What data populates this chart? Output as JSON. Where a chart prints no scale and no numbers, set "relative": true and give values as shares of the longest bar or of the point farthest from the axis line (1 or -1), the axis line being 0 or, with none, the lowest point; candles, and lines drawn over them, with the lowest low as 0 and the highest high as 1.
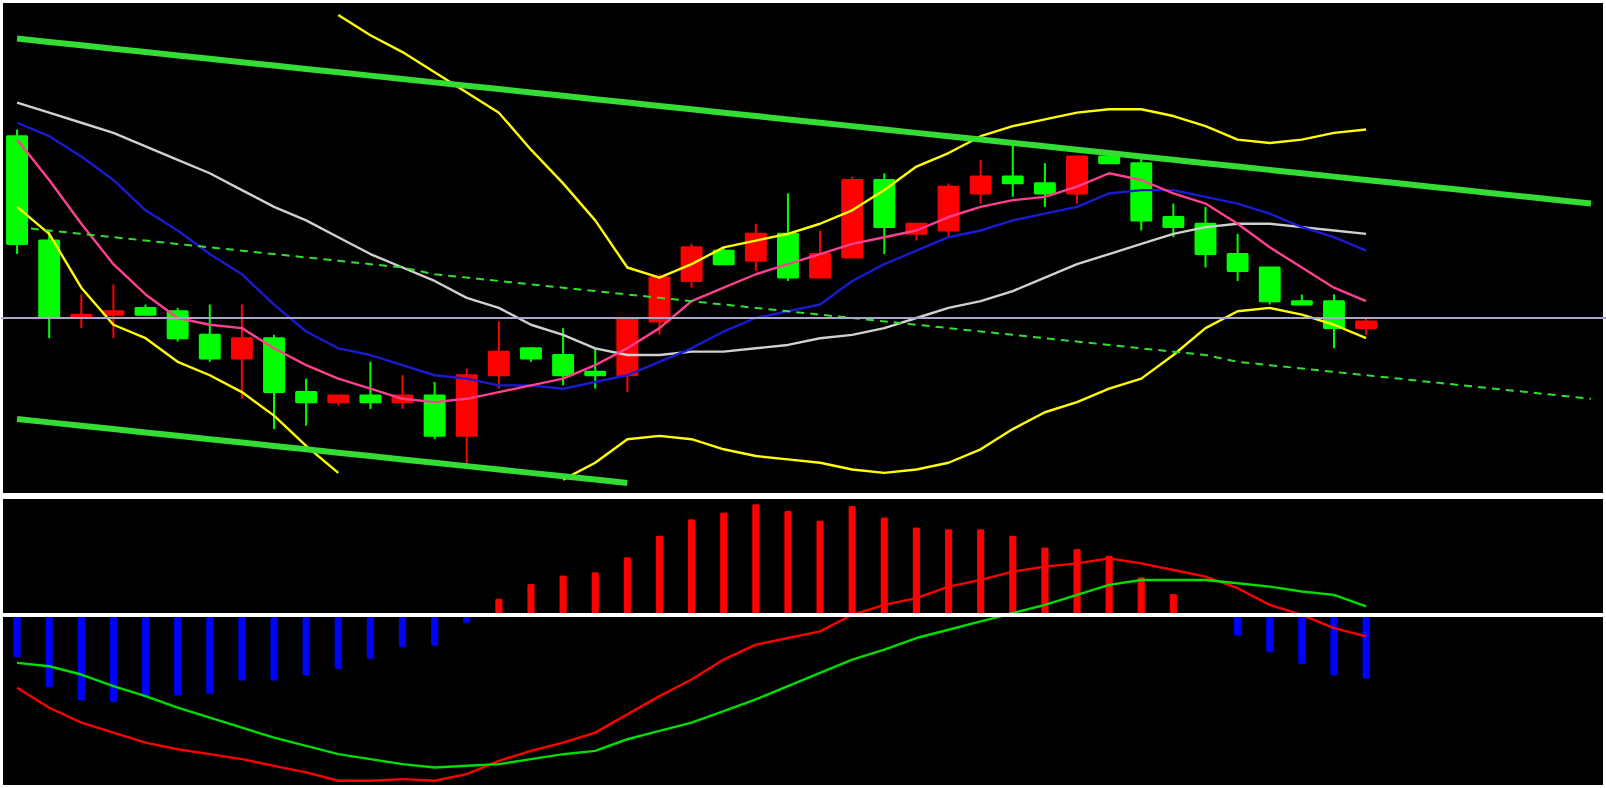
{
  "chart_data": [
    {
      "type": "candlestick",
      "relative": true,
      "grid": false,
      "tick_labels": false,
      "categories": [
        null,
        null,
        null,
        null,
        null,
        null,
        null,
        null,
        null,
        null,
        null,
        null,
        null,
        null,
        null,
        null,
        null,
        null,
        null,
        null,
        null,
        null,
        null,
        null,
        null,
        null,
        null,
        null,
        null,
        null,
        null,
        null,
        null,
        null,
        null,
        null,
        null,
        null,
        null,
        null,
        null,
        null,
        null,
        null,
        null,
        null,
        null,
        null,
        null,
        null
      ],
      "ohlc": [
        [
          0.98,
          1.0,
          0.63,
          0.66
        ],
        [
          0.67,
          0.7,
          0.38,
          0.44
        ],
        [
          0.44,
          0.51,
          0.41,
          0.45
        ],
        [
          0.45,
          0.54,
          0.38,
          0.46
        ],
        [
          0.47,
          0.48,
          0.45,
          0.45
        ],
        [
          0.46,
          0.47,
          0.37,
          0.38
        ],
        [
          0.39,
          0.48,
          0.31,
          0.32
        ],
        [
          0.32,
          0.48,
          0.2,
          0.38
        ],
        [
          0.38,
          0.39,
          0.11,
          0.22
        ],
        [
          0.22,
          0.26,
          0.12,
          0.19
        ],
        [
          0.19,
          0.21,
          0.18,
          0.21
        ],
        [
          0.21,
          0.31,
          0.17,
          0.19
        ],
        [
          0.19,
          0.27,
          0.17,
          0.21
        ],
        [
          0.21,
          0.25,
          0.08,
          0.09
        ],
        [
          0.09,
          0.29,
          0.0,
          0.27
        ],
        [
          0.27,
          0.43,
          0.23,
          0.34
        ],
        [
          0.35,
          0.35,
          0.31,
          0.32
        ],
        [
          0.33,
          0.41,
          0.24,
          0.27
        ],
        [
          0.28,
          0.35,
          0.23,
          0.27
        ],
        [
          0.27,
          0.44,
          0.22,
          0.44
        ],
        [
          0.43,
          0.57,
          0.39,
          0.56
        ],
        [
          0.55,
          0.66,
          0.53,
          0.65
        ],
        [
          0.64,
          0.65,
          0.6,
          0.6
        ],
        [
          0.61,
          0.72,
          0.58,
          0.69
        ],
        [
          0.69,
          0.81,
          0.55,
          0.56
        ],
        [
          0.56,
          0.7,
          0.56,
          0.63
        ],
        [
          0.62,
          0.86,
          0.62,
          0.85
        ],
        [
          0.85,
          0.87,
          0.63,
          0.71
        ],
        [
          0.69,
          0.72,
          0.67,
          0.72
        ],
        [
          0.7,
          0.84,
          0.68,
          0.83
        ],
        [
          0.81,
          0.91,
          0.78,
          0.86
        ],
        [
          0.86,
          0.96,
          0.8,
          0.84
        ],
        [
          0.84,
          0.9,
          0.77,
          0.81
        ],
        [
          0.81,
          0.92,
          0.78,
          0.92
        ],
        [
          0.92,
          0.93,
          0.9,
          0.9
        ],
        [
          0.9,
          0.92,
          0.7,
          0.73
        ],
        [
          0.74,
          0.78,
          0.68,
          0.71
        ],
        [
          0.72,
          0.77,
          0.59,
          0.63
        ],
        [
          0.63,
          0.69,
          0.55,
          0.58
        ],
        [
          0.59,
          0.59,
          0.48,
          0.49
        ],
        [
          0.49,
          0.51,
          0.48,
          0.48
        ],
        [
          0.49,
          0.51,
          0.35,
          0.41
        ],
        [
          0.41,
          0.44,
          0.39,
          0.43
        ],
        null,
        null,
        null,
        null,
        null,
        null,
        null
      ],
      "colors": [
        "#00ff00",
        "#00ff00",
        "#ff0000",
        "#ff0000",
        "#00ff00",
        "#00ff00",
        "#00ff00",
        "#ff0000",
        "#00ff00",
        "#00ff00",
        "#ff0000",
        "#00ff00",
        "#ff0000",
        "#00ff00",
        "#ff0000",
        "#ff0000",
        "#00ff00",
        "#00ff00",
        "#00ff00",
        "#ff0000",
        "#ff0000",
        "#ff0000",
        "#00ff00",
        "#ff0000",
        "#00ff00",
        "#ff0000",
        "#ff0000",
        "#00ff00",
        "#ff0000",
        "#ff0000",
        "#ff0000",
        "#00ff00",
        "#00ff00",
        "#ff0000",
        "#00ff00",
        "#00ff00",
        "#00ff00",
        "#00ff00",
        "#00ff00",
        "#00ff00",
        "#00ff00",
        "#00ff00",
        "#ff0000",
        null,
        null,
        null,
        null,
        null,
        null,
        null
      ],
      "series": [
        {
          "type": "line",
          "color": "#ffff00",
          "values": [
            null,
            null,
            null,
            null,
            null,
            null,
            null,
            null,
            null,
            null,
            1.34,
            1.28,
            1.23,
            1.17,
            1.11,
            1.05,
            0.94,
            0.84,
            0.73,
            0.59,
            0.56,
            0.6,
            0.65,
            0.67,
            0.69,
            0.72,
            0.76,
            0.82,
            0.89,
            0.93,
            0.98,
            1.01,
            1.03,
            1.05,
            1.06,
            1.06,
            1.04,
            1.01,
            0.97,
            0.96,
            0.97,
            0.99,
            1.0,
            null,
            null,
            null,
            null,
            null,
            null,
            null
          ]
        },
        {
          "type": "line",
          "color": "#ffff00",
          "values": [
            0.77,
            0.69,
            0.53,
            0.42,
            0.38,
            0.31,
            0.27,
            0.22,
            0.15,
            0.06,
            -0.02,
            null,
            null,
            null,
            null,
            null,
            null,
            -0.04,
            0.01,
            0.08,
            0.09,
            0.08,
            0.05,
            0.03,
            0.02,
            0.01,
            -0.01,
            -0.02,
            -0.01,
            0.01,
            0.05,
            0.11,
            0.16,
            0.19,
            0.23,
            0.26,
            0.33,
            0.41,
            0.46,
            0.47,
            0.45,
            0.42,
            0.38,
            null,
            null,
            null,
            null,
            null,
            null,
            null
          ]
        },
        {
          "type": "line",
          "color": "#d0d0d0",
          "values": [
            1.08,
            1.05,
            1.02,
            0.99,
            0.95,
            0.91,
            0.87,
            0.82,
            0.77,
            0.73,
            0.68,
            0.63,
            0.59,
            0.55,
            0.5,
            0.47,
            0.42,
            0.39,
            0.35,
            0.33,
            0.33,
            0.34,
            0.34,
            0.35,
            0.36,
            0.38,
            0.39,
            0.41,
            0.44,
            0.47,
            0.49,
            0.52,
            0.56,
            0.6,
            0.63,
            0.66,
            0.69,
            0.71,
            0.72,
            0.72,
            0.71,
            0.7,
            0.69,
            null,
            null,
            null,
            null,
            null,
            null,
            null
          ]
        },
        {
          "type": "line",
          "color": "#1a1ad0",
          "values": [
            1.02,
            0.98,
            0.92,
            0.85,
            0.76,
            0.7,
            0.63,
            0.57,
            0.48,
            0.4,
            0.35,
            0.33,
            0.3,
            0.27,
            0.26,
            0.24,
            0.24,
            0.23,
            0.25,
            0.27,
            0.31,
            0.35,
            0.4,
            0.44,
            0.46,
            0.48,
            0.55,
            0.6,
            0.64,
            0.68,
            0.7,
            0.73,
            0.75,
            0.77,
            0.81,
            0.82,
            0.82,
            0.8,
            0.78,
            0.75,
            0.71,
            0.68,
            0.64,
            null,
            null,
            null,
            null,
            null,
            null,
            null
          ]
        },
        {
          "type": "line",
          "color": "#ff4090",
          "values": [
            0.97,
            0.85,
            0.72,
            0.6,
            0.51,
            0.44,
            0.42,
            0.41,
            0.35,
            0.3,
            0.26,
            0.23,
            0.2,
            0.19,
            0.2,
            0.22,
            0.24,
            0.26,
            0.3,
            0.35,
            0.41,
            0.49,
            0.53,
            0.57,
            0.6,
            0.63,
            0.66,
            0.68,
            0.7,
            0.74,
            0.77,
            0.79,
            0.8,
            0.83,
            0.87,
            0.85,
            0.81,
            0.78,
            0.72,
            0.65,
            0.59,
            0.53,
            0.49,
            null,
            null,
            null,
            null,
            null,
            null,
            null
          ]
        },
        {
          "type": "line",
          "color": "#33dd33",
          "values": [
            1.27,
            1.26,
            1.25,
            1.24,
            1.23,
            1.22,
            1.21,
            1.2,
            1.19,
            1.18,
            1.17,
            1.16,
            1.15,
            1.14,
            1.13,
            1.12,
            1.11,
            1.1,
            1.09,
            1.08,
            1.07,
            1.06,
            1.05,
            1.04,
            1.03,
            1.02,
            1.01,
            1.0,
            0.99,
            0.98,
            0.97,
            0.96,
            0.95,
            0.94,
            0.93,
            0.92,
            0.91,
            0.9,
            0.89,
            0.88,
            0.87,
            0.86,
            0.85,
            0.84,
            0.83,
            0.82,
            0.81,
            0.8,
            0.79,
            0.78
          ]
        },
        {
          "type": "line",
          "color": "#33dd33",
          "values": [
            0.14,
            0.13,
            0.12,
            0.11,
            0.1,
            0.09,
            0.08,
            0.07,
            0.06,
            0.05,
            0.04,
            0.03,
            0.02,
            0.01,
            0,
            -0.01,
            -0.02,
            -0.03,
            -0.04,
            -0.05,
            null,
            null,
            null,
            null,
            null,
            null,
            null,
            null,
            null,
            null,
            null,
            null,
            null,
            null,
            null,
            null,
            null,
            null,
            null,
            null,
            null,
            null,
            null,
            null,
            null,
            null,
            null,
            null,
            null,
            null
          ]
        },
        {
          "type": "line",
          "color": "#33dd33",
          "line_style": "dashed",
          "values": [
            0.71,
            0.7,
            0.69,
            0.68,
            0.67,
            0.66,
            0.65,
            0.64,
            0.63,
            0.62,
            0.61,
            0.6,
            0.59,
            0.57,
            0.56,
            0.55,
            0.54,
            0.53,
            0.52,
            0.51,
            0.5,
            0.49,
            0.48,
            0.47,
            0.46,
            0.45,
            0.44,
            0.43,
            0.42,
            0.41,
            0.4,
            0.39,
            0.38,
            0.37,
            0.36,
            0.35,
            0.34,
            0.33,
            0.31,
            0.3,
            0.29,
            0.28,
            0.27,
            0.26,
            0.25,
            0.24,
            0.23,
            0.22,
            0.21,
            0.2
          ]
        }
      ],
      "ref_lines": [
        {
          "axis": "y",
          "value": 0.44,
          "color": "#a8a8c8"
        }
      ]
    },
    {
      "type": "bar",
      "relative": true,
      "grid": false,
      "tick_labels": false,
      "categories": [
        null,
        null,
        null,
        null,
        null,
        null,
        null,
        null,
        null,
        null,
        null,
        null,
        null,
        null,
        null,
        null,
        null,
        null,
        null,
        null,
        null,
        null,
        null,
        null,
        null,
        null,
        null,
        null,
        null,
        null,
        null,
        null,
        null,
        null,
        null,
        null,
        null,
        null,
        null,
        null,
        null,
        null,
        null,
        null,
        null,
        null,
        null,
        null,
        null,
        null
      ],
      "series": [
        {
          "type": "bar",
          "values": [
            -0.25,
            -0.43,
            -0.51,
            -0.52,
            -0.49,
            -0.48,
            -0.47,
            -0.39,
            -0.39,
            -0.36,
            -0.32,
            -0.26,
            -0.19,
            -0.18,
            -0.04,
            0.09,
            0.18,
            0.23,
            0.25,
            0.34,
            0.47,
            0.57,
            0.61,
            0.66,
            0.62,
            0.56,
            0.65,
            0.58,
            0.52,
            0.51,
            0.51,
            0.47,
            0.4,
            0.39,
            0.35,
            0.22,
            0.12,
            0,
            -0.12,
            -0.22,
            -0.29,
            -0.36,
            -0.38,
            null,
            null,
            null,
            null,
            null,
            null,
            null
          ],
          "colors": [
            "#0000ff",
            "#0000ff",
            "#0000ff",
            "#0000ff",
            "#0000ff",
            "#0000ff",
            "#0000ff",
            "#0000ff",
            "#0000ff",
            "#0000ff",
            "#0000ff",
            "#0000ff",
            "#0000ff",
            "#0000ff",
            "#0000ff",
            "#ff0000",
            "#ff0000",
            "#ff0000",
            "#ff0000",
            "#ff0000",
            "#ff0000",
            "#ff0000",
            "#ff0000",
            "#ff0000",
            "#ff0000",
            "#ff0000",
            "#ff0000",
            "#ff0000",
            "#ff0000",
            "#ff0000",
            "#ff0000",
            "#ff0000",
            "#ff0000",
            "#ff0000",
            "#ff0000",
            "#ff0000",
            "#ff0000",
            "#ff0000",
            "#0000ff",
            "#0000ff",
            "#0000ff",
            "#0000ff",
            "#0000ff",
            null,
            null,
            null,
            null,
            null,
            null,
            null
          ]
        },
        {
          "type": "line",
          "color": "#ff0000",
          "values": [
            -0.44,
            -0.56,
            -0.65,
            -0.71,
            -0.77,
            -0.81,
            -0.84,
            -0.87,
            -0.91,
            -0.95,
            -1,
            -1,
            -0.99,
            -1,
            -0.96,
            -0.88,
            -0.82,
            -0.77,
            -0.71,
            -0.6,
            -0.49,
            -0.39,
            -0.27,
            -0.18,
            -0.14,
            -0.1,
            0,
            0.06,
            0.1,
            0.17,
            0.21,
            0.26,
            0.29,
            0.31,
            0.34,
            0.31,
            0.27,
            0.23,
            0.16,
            0.06,
            0,
            -0.08,
            -0.13,
            null,
            null,
            null,
            null,
            null,
            null,
            null
          ]
        },
        {
          "type": "line",
          "color": "#00dd00",
          "values": [
            -0.29,
            -0.31,
            -0.36,
            -0.43,
            -0.49,
            -0.56,
            -0.62,
            -0.68,
            -0.74,
            -0.79,
            -0.84,
            -0.87,
            -0.9,
            -0.92,
            -0.91,
            -0.9,
            -0.87,
            -0.84,
            -0.82,
            -0.75,
            -0.7,
            -0.65,
            -0.58,
            -0.51,
            -0.43,
            -0.35,
            -0.27,
            -0.21,
            -0.14,
            -0.09,
            -0.04,
            0.01,
            0.06,
            0.12,
            0.18,
            0.21,
            0.21,
            0.21,
            0.19,
            0.17,
            0.14,
            0.12,
            0.05,
            null,
            null,
            null,
            null,
            null,
            null,
            null
          ]
        }
      ]
    }
  ]
}
